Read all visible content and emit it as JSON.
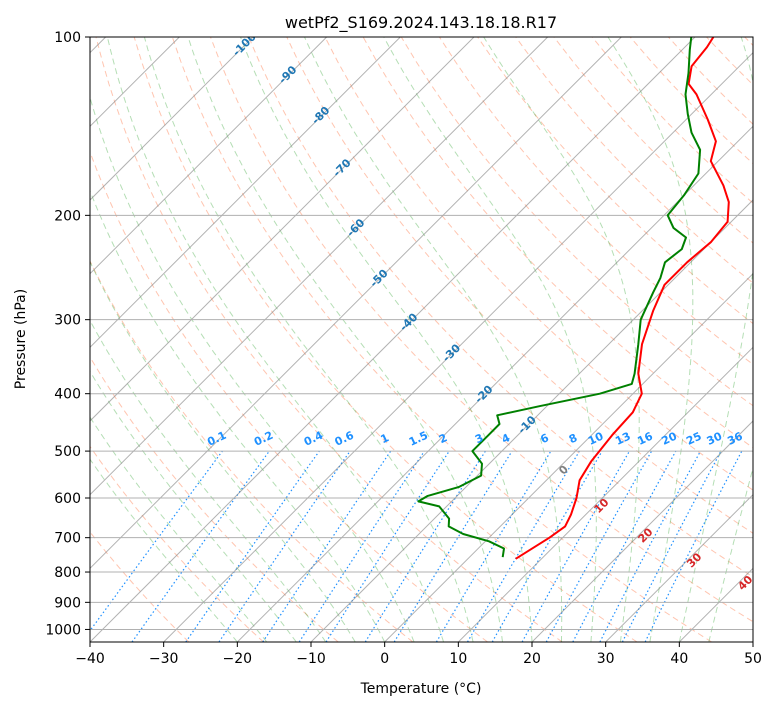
{
  "chart_data": {
    "type": "line",
    "title": "wetPf2_S169.2024.143.18.18.R17",
    "xlabel": "Temperature (°C)",
    "ylabel": "Pressure (hPa)",
    "xlim": [
      -40,
      50
    ],
    "ylim": [
      1050,
      100
    ],
    "y_scale": "log",
    "x_ticks": [
      -40,
      -30,
      -20,
      -10,
      0,
      10,
      20,
      30,
      40,
      50
    ],
    "y_ticks": [
      100,
      200,
      300,
      400,
      500,
      600,
      700,
      800,
      900,
      1000
    ],
    "grid": true,
    "skew": "skew-T log-p (isotherms skewed 45°)",
    "series": [
      {
        "role": "temperature",
        "color": "#ff0000",
        "points": [
          {
            "p": 760,
            "t": 6.5
          },
          {
            "p": 700,
            "t": 8.2
          },
          {
            "p": 670,
            "t": 8.8
          },
          {
            "p": 640,
            "t": 8.0
          },
          {
            "p": 600,
            "t": 6.5
          },
          {
            "p": 560,
            "t": 4.5
          },
          {
            "p": 520,
            "t": 3.5
          },
          {
            "p": 470,
            "t": 2.8
          },
          {
            "p": 430,
            "t": 2.5
          },
          {
            "p": 400,
            "t": 1.2
          },
          {
            "p": 370,
            "t": -2.0
          },
          {
            "p": 330,
            "t": -5.5
          },
          {
            "p": 290,
            "t": -8.5
          },
          {
            "p": 262,
            "t": -10.5
          },
          {
            "p": 240,
            "t": -10.5
          },
          {
            "p": 222,
            "t": -10.0
          },
          {
            "p": 205,
            "t": -10.5
          },
          {
            "p": 190,
            "t": -13.0
          },
          {
            "p": 178,
            "t": -16.0
          },
          {
            "p": 162,
            "t": -21.0
          },
          {
            "p": 150,
            "t": -23.0
          },
          {
            "p": 138,
            "t": -27.0
          },
          {
            "p": 125,
            "t": -32.0
          },
          {
            "p": 120,
            "t": -34.5
          },
          {
            "p": 112,
            "t": -36.5
          },
          {
            "p": 104,
            "t": -37.0
          },
          {
            "p": 100,
            "t": -37.5
          }
        ]
      },
      {
        "role": "dewpoint",
        "color": "#008000",
        "points": [
          {
            "p": 755,
            "t": 4.5
          },
          {
            "p": 730,
            "t": 3.5
          },
          {
            "p": 710,
            "t": 0.5
          },
          {
            "p": 690,
            "t": -4.0
          },
          {
            "p": 670,
            "t": -7.0
          },
          {
            "p": 650,
            "t": -8.0
          },
          {
            "p": 620,
            "t": -11.0
          },
          {
            "p": 608,
            "t": -14.5
          },
          {
            "p": 595,
            "t": -14.0
          },
          {
            "p": 575,
            "t": -11.0
          },
          {
            "p": 550,
            "t": -9.5
          },
          {
            "p": 525,
            "t": -11.0
          },
          {
            "p": 500,
            "t": -14.0
          },
          {
            "p": 470,
            "t": -14.0
          },
          {
            "p": 450,
            "t": -14.0
          },
          {
            "p": 435,
            "t": -15.5
          },
          {
            "p": 420,
            "t": -11.0
          },
          {
            "p": 400,
            "t": -4.5
          },
          {
            "p": 385,
            "t": -1.5
          },
          {
            "p": 370,
            "t": -2.5
          },
          {
            "p": 330,
            "t": -6.0
          },
          {
            "p": 300,
            "t": -9.0
          },
          {
            "p": 270,
            "t": -11.0
          },
          {
            "p": 255,
            "t": -12.0
          },
          {
            "p": 240,
            "t": -13.5
          },
          {
            "p": 228,
            "t": -13.0
          },
          {
            "p": 218,
            "t": -14.0
          },
          {
            "p": 210,
            "t": -17.0
          },
          {
            "p": 200,
            "t": -19.5
          },
          {
            "p": 185,
            "t": -20.0
          },
          {
            "p": 170,
            "t": -21.0
          },
          {
            "p": 155,
            "t": -24.0
          },
          {
            "p": 145,
            "t": -27.5
          },
          {
            "p": 135,
            "t": -30.5
          },
          {
            "p": 125,
            "t": -33.5
          },
          {
            "p": 115,
            "t": -36.0
          },
          {
            "p": 105,
            "t": -39.0
          },
          {
            "p": 100,
            "t": -40.5
          }
        ]
      }
    ],
    "reference_lines": {
      "isotherm_color": "#808080",
      "dry_adiabat_color": "#ff7f50",
      "moist_adiabat_color": "#2ca02c",
      "mixing_ratio_color": "#1e90ff",
      "isotherm_labels": {
        "color": "#1f77b4",
        "values": [
          "-100",
          "-90",
          "-80",
          "-70",
          "-60",
          "-50",
          "-40",
          "-30",
          "-20",
          "-10"
        ]
      },
      "mixing_ratio_labels": {
        "color": "#1e90ff",
        "values": [
          "0.1",
          "0.2",
          "0.4",
          "0.6",
          "1",
          "1.5",
          "2",
          "3",
          "4",
          "6",
          "8",
          "10",
          "13",
          "16",
          "20",
          "25",
          "30",
          "36"
        ]
      },
      "lower_isotherm_labels": {
        "values": [
          "0",
          "10",
          "20",
          "30",
          "40"
        ],
        "colors": [
          "#808080",
          "#d62728",
          "#d62728",
          "#d62728",
          "#d62728"
        ]
      }
    }
  }
}
